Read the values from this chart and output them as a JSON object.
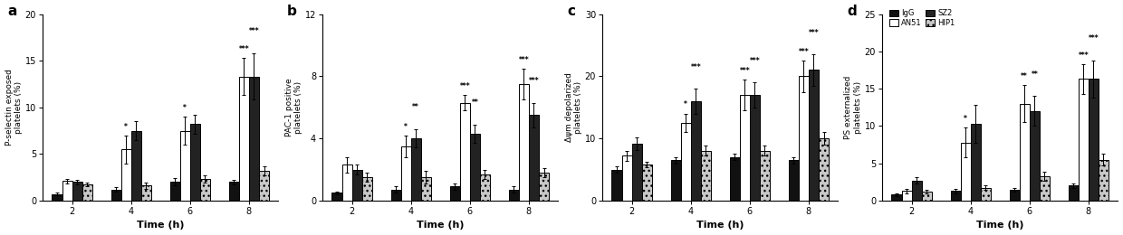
{
  "panels": [
    {
      "label": "a",
      "ylabel": "P-selectin exposed\nplatelets (%)",
      "ylim": [
        0,
        20
      ],
      "yticks": [
        0,
        5,
        10,
        15,
        20
      ],
      "times": [
        2,
        4,
        6,
        8
      ],
      "bars": {
        "IgG": {
          "values": [
            0.7,
            1.2,
            2.0,
            2.0
          ],
          "errors": [
            0.15,
            0.25,
            0.4,
            0.25
          ]
        },
        "AN51": {
          "values": [
            2.1,
            5.5,
            7.5,
            13.3
          ],
          "errors": [
            0.25,
            1.5,
            1.5,
            2.0
          ]
        },
        "SZ2": {
          "values": [
            2.0,
            7.5,
            8.2,
            13.3
          ],
          "errors": [
            0.25,
            1.0,
            1.0,
            2.5
          ]
        },
        "HIP1": {
          "values": [
            1.7,
            1.6,
            2.3,
            3.2
          ],
          "errors": [
            0.2,
            0.3,
            0.4,
            0.5
          ]
        }
      },
      "significance": {
        "4": [
          [
            "AN51",
            "*"
          ]
        ],
        "6": [
          [
            "AN51",
            "*"
          ]
        ],
        "8": [
          [
            "AN51",
            "***"
          ],
          [
            "SZ2",
            "***"
          ]
        ]
      }
    },
    {
      "label": "b",
      "ylabel": "PAC-1 positive\nplatelets (%)",
      "ylim": [
        0,
        12
      ],
      "yticks": [
        0,
        4,
        8,
        12
      ],
      "times": [
        2,
        4,
        6,
        8
      ],
      "bars": {
        "IgG": {
          "values": [
            0.5,
            0.7,
            0.9,
            0.7
          ],
          "errors": [
            0.1,
            0.2,
            0.2,
            0.2
          ]
        },
        "AN51": {
          "values": [
            2.3,
            3.5,
            6.3,
            7.5
          ],
          "errors": [
            0.5,
            0.7,
            0.5,
            1.0
          ]
        },
        "SZ2": {
          "values": [
            2.0,
            4.0,
            4.3,
            5.5
          ],
          "errors": [
            0.3,
            0.6,
            0.6,
            0.8
          ]
        },
        "HIP1": {
          "values": [
            1.5,
            1.5,
            1.7,
            1.8
          ],
          "errors": [
            0.3,
            0.4,
            0.3,
            0.3
          ]
        }
      },
      "significance": {
        "4": [
          [
            "AN51",
            "*"
          ],
          [
            "SZ2",
            "**"
          ]
        ],
        "6": [
          [
            "AN51",
            "***"
          ],
          [
            "SZ2",
            "**"
          ]
        ],
        "8": [
          [
            "AN51",
            "***"
          ],
          [
            "SZ2",
            "***"
          ]
        ]
      }
    },
    {
      "label": "c",
      "ylabel": "Δψm depolarized\nplatelets (%)",
      "ylim": [
        0,
        30
      ],
      "yticks": [
        0,
        10,
        20,
        30
      ],
      "times": [
        2,
        4,
        6,
        8
      ],
      "bars": {
        "IgG": {
          "values": [
            5.0,
            6.5,
            7.0,
            6.5
          ],
          "errors": [
            0.5,
            0.5,
            0.5,
            0.5
          ]
        },
        "AN51": {
          "values": [
            7.2,
            12.5,
            17.0,
            20.0
          ],
          "errors": [
            0.8,
            1.5,
            2.5,
            2.5
          ]
        },
        "SZ2": {
          "values": [
            9.2,
            16.0,
            17.0,
            21.0
          ],
          "errors": [
            1.0,
            2.0,
            2.0,
            2.5
          ]
        },
        "HIP1": {
          "values": [
            5.8,
            8.0,
            8.0,
            10.0
          ],
          "errors": [
            0.5,
            0.8,
            0.8,
            1.0
          ]
        }
      },
      "significance": {
        "4": [
          [
            "AN51",
            "*"
          ],
          [
            "SZ2",
            "***"
          ]
        ],
        "6": [
          [
            "AN51",
            "***"
          ],
          [
            "SZ2",
            "***"
          ]
        ],
        "8": [
          [
            "AN51",
            "***"
          ],
          [
            "SZ2",
            "***"
          ]
        ]
      }
    },
    {
      "label": "d",
      "ylabel": "PS externalized\nplatelets (%)",
      "ylim": [
        0,
        25
      ],
      "yticks": [
        0,
        5,
        10,
        15,
        20,
        25
      ],
      "times": [
        2,
        4,
        6,
        8
      ],
      "bars": {
        "IgG": {
          "values": [
            0.8,
            1.3,
            1.4,
            2.0
          ],
          "errors": [
            0.15,
            0.3,
            0.25,
            0.3
          ]
        },
        "AN51": {
          "values": [
            1.3,
            7.8,
            13.0,
            16.3
          ],
          "errors": [
            0.3,
            2.0,
            2.5,
            2.0
          ]
        },
        "SZ2": {
          "values": [
            2.7,
            10.3,
            12.0,
            16.3
          ],
          "errors": [
            0.4,
            2.5,
            2.0,
            2.5
          ]
        },
        "HIP1": {
          "values": [
            1.2,
            1.7,
            3.3,
            5.5
          ],
          "errors": [
            0.2,
            0.3,
            0.6,
            0.8
          ]
        }
      },
      "significance": {
        "4": [
          [
            "AN51",
            "*"
          ]
        ],
        "6": [
          [
            "AN51",
            "**"
          ],
          [
            "SZ2",
            "**"
          ]
        ],
        "8": [
          [
            "AN51",
            "***"
          ],
          [
            "SZ2",
            "***"
          ]
        ]
      }
    }
  ],
  "bar_width": 0.17,
  "xlabel": "Time (h)"
}
